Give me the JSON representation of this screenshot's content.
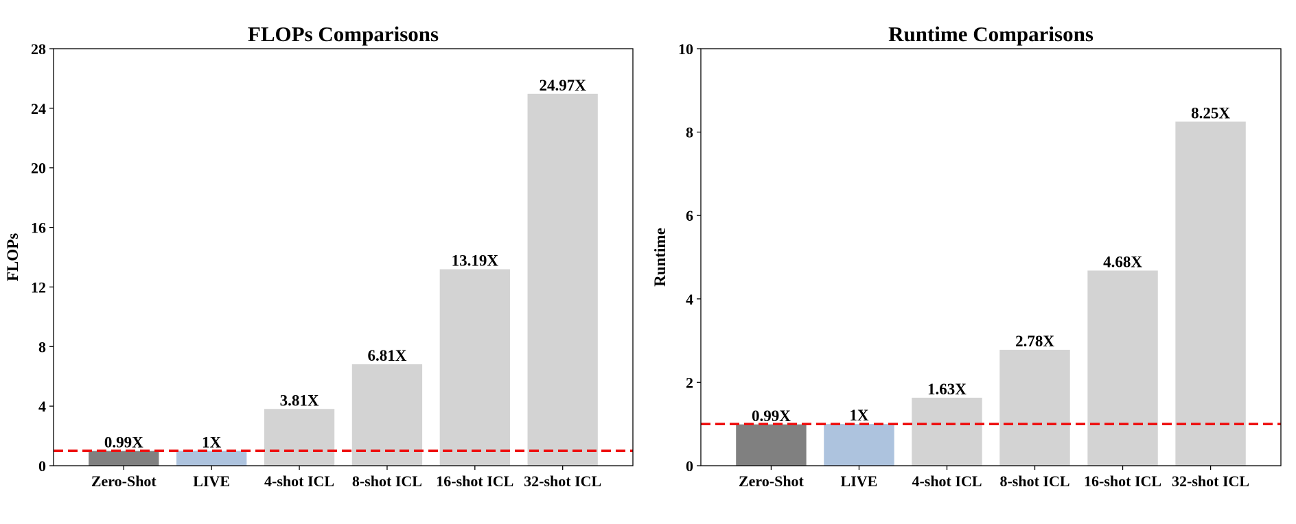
{
  "chart_data": [
    {
      "type": "bar",
      "title": "FLOPs Comparisons",
      "xlabel": "",
      "ylabel": "FLOPs",
      "categories": [
        "Zero-Shot",
        "LIVE",
        "4-shot ICL",
        "8-shot ICL",
        "16-shot ICL",
        "32-shot ICL"
      ],
      "values": [
        0.99,
        1,
        3.81,
        6.81,
        13.19,
        24.97
      ],
      "value_labels": [
        "0.99X",
        "1X",
        "3.81X",
        "6.81X",
        "13.19X",
        "24.97X"
      ],
      "bar_colors": [
        "#808080",
        "#adc3de",
        "#d3d3d3",
        "#d3d3d3",
        "#d3d3d3",
        "#d3d3d3"
      ],
      "ylim": [
        0,
        28
      ],
      "yticks": [
        0,
        4,
        8,
        12,
        16,
        20,
        24,
        28
      ],
      "reference_line": {
        "y": 1,
        "color": "#ee1111",
        "style": "dashed"
      },
      "grid": false
    },
    {
      "type": "bar",
      "title": "Runtime Comparisons",
      "xlabel": "",
      "ylabel": "Runtime",
      "categories": [
        "Zero-Shot",
        "LIVE",
        "4-shot ICL",
        "8-shot ICL",
        "16-shot ICL",
        "32-shot ICL"
      ],
      "values": [
        0.99,
        1,
        1.63,
        2.78,
        4.68,
        8.25
      ],
      "value_labels": [
        "0.99X",
        "1X",
        "1.63X",
        "2.78X",
        "4.68X",
        "8.25X"
      ],
      "bar_colors": [
        "#808080",
        "#adc3de",
        "#d3d3d3",
        "#d3d3d3",
        "#d3d3d3",
        "#d3d3d3"
      ],
      "ylim": [
        0,
        10
      ],
      "yticks": [
        0,
        2,
        4,
        6,
        8,
        10
      ],
      "reference_line": {
        "y": 1,
        "color": "#ee1111",
        "style": "dashed"
      },
      "grid": false
    }
  ]
}
